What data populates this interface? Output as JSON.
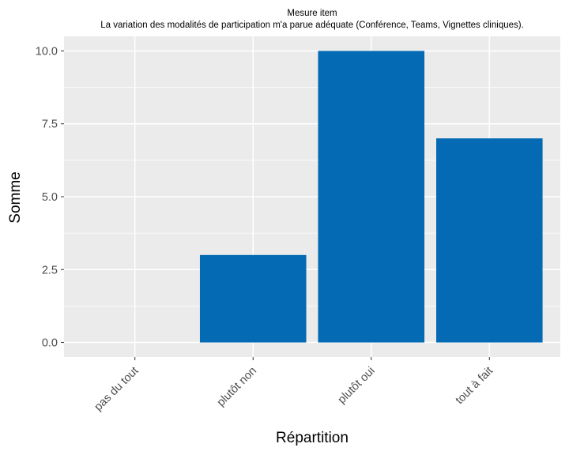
{
  "chart_data": {
    "type": "bar",
    "title": "Mesure item",
    "subtitle": "La variation des modalités de participation m'a parue adéquate (Conférence, Teams, Vignettes cliniques).",
    "xlabel": "Répartition",
    "ylabel": "Somme",
    "categories": [
      "pas du tout",
      "plutôt non",
      "plutôt oui",
      "tout à fait"
    ],
    "values": [
      0,
      3,
      10,
      7
    ],
    "ylim": [
      -0.5,
      10.5
    ],
    "yticks": [
      0,
      2.5,
      5,
      7.5,
      10
    ],
    "ytick_labels": [
      "0.0",
      "2.5",
      "5.0",
      "7.5",
      "10.0"
    ],
    "grid": true,
    "bar_color": "#036AB3",
    "panel_background": "#EBEBEB",
    "grid_color": "#FFFFFF"
  }
}
